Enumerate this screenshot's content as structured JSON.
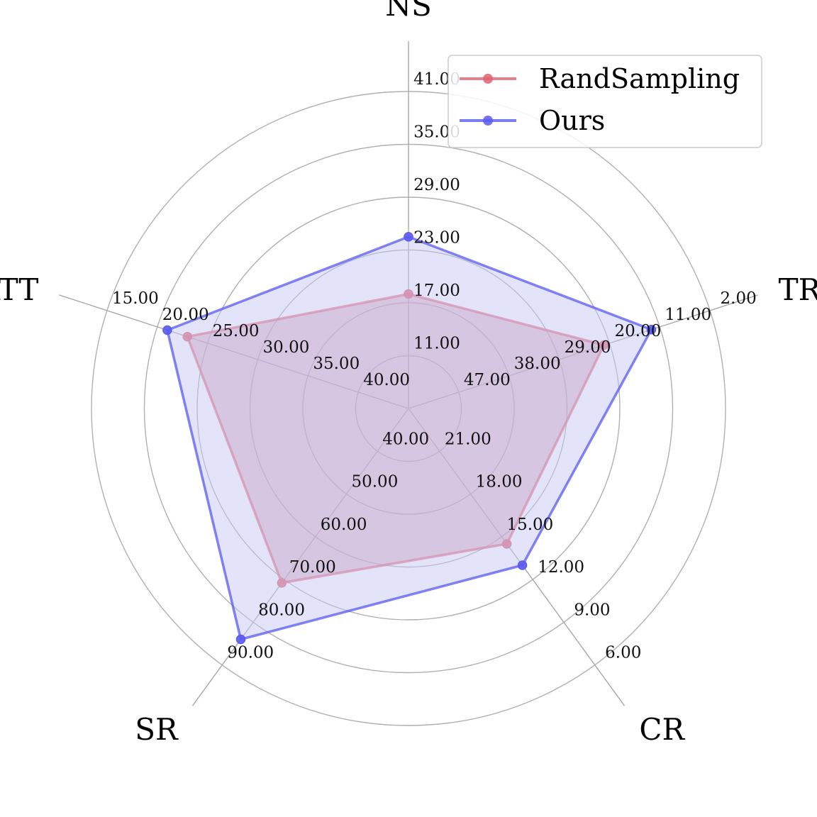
{
  "chart_data": {
    "type": "radar",
    "axes": [
      {
        "name": "NS",
        "ticks": [
          "11.00",
          "17.00",
          "23.00",
          "29.00",
          "35.00",
          "41.00"
        ]
      },
      {
        "name": "TR",
        "ticks": [
          "47.00",
          "38.00",
          "29.00",
          "20.00",
          "11.00",
          "2.00"
        ]
      },
      {
        "name": "CR",
        "ticks": [
          "21.00",
          "18.00",
          "15.00",
          "12.00",
          "9.00",
          "6.00"
        ]
      },
      {
        "name": "SR",
        "ticks": [
          "40.00",
          "50.00",
          "60.00",
          "70.00",
          "80.00",
          "90.00"
        ]
      },
      {
        "name": "ATT",
        "ticks": [
          "40.00",
          "35.00",
          "30.00",
          "25.00",
          "20.00",
          "15.00"
        ]
      }
    ],
    "series": [
      {
        "name": "RandSampling",
        "color": "#e06070",
        "fill": "#d08aa0",
        "values": [
          18.0,
          21.0,
          14.5,
          70.8,
          23.0
        ]
      },
      {
        "name": "Ours",
        "color": "#5a5af0",
        "fill": "#c8c8f5",
        "values": [
          24.5,
          12.5,
          13.0,
          84.0,
          21.0
        ]
      }
    ],
    "legend_position": "top-right",
    "grid": true
  }
}
